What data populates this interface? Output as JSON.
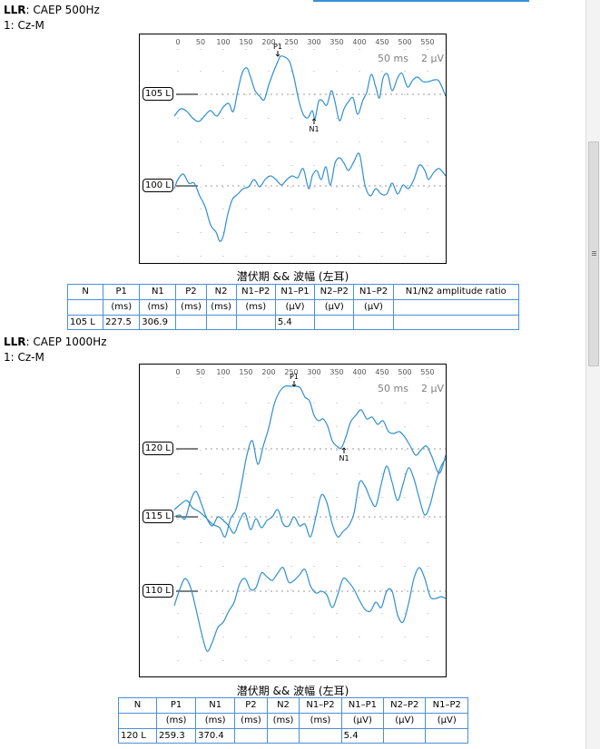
{
  "sections": [
    {
      "title_bold": "LLR",
      "title_rest": ": CAEP 500Hz",
      "channel": "1: Cz-M",
      "scale": {
        "time": "50 ms",
        "amp": "2 µV"
      },
      "axis_ticks": [
        "0",
        "50",
        "100",
        "150",
        "200",
        "250",
        "300",
        "350",
        "400",
        "450",
        "500",
        "550"
      ],
      "traces": [
        {
          "label": "105 L",
          "markers": [
            {
              "name": "P1",
              "ms": 227.5
            },
            {
              "name": "N1",
              "ms": 306.9
            }
          ]
        },
        {
          "label": "100 L",
          "markers": []
        }
      ],
      "table": {
        "title": "潜伏期 && 波幅 (左耳)",
        "headers": [
          [
            "N",
            ""
          ],
          [
            "P1",
            "(ms)"
          ],
          [
            "N1",
            "(ms)"
          ],
          [
            "P2",
            "(ms)"
          ],
          [
            "N2",
            "(ms)"
          ],
          [
            "N1–P2",
            "(ms)"
          ],
          [
            "N1–P1",
            "(µV)"
          ],
          [
            "N2–P2",
            "(µV)"
          ],
          [
            "N1–P2",
            "(µV)"
          ],
          [
            "N1/N2 amplitude ratio",
            ""
          ]
        ],
        "row": [
          "105 L",
          "227.5",
          "306.9",
          "",
          "",
          "",
          "5.4",
          "",
          "",
          ""
        ]
      }
    },
    {
      "title_bold": "LLR",
      "title_rest": ": CAEP 1000Hz",
      "channel": "1: Cz-M",
      "scale": {
        "time": "50 ms",
        "amp": "2 µV"
      },
      "axis_ticks": [
        "0",
        "50",
        "100",
        "150",
        "200",
        "250",
        "300",
        "350",
        "400",
        "450",
        "500",
        "550"
      ],
      "traces": [
        {
          "label": "120 L",
          "markers": [
            {
              "name": "P1",
              "ms": 259.3
            },
            {
              "name": "N1",
              "ms": 370.4
            }
          ]
        },
        {
          "label": "115 L",
          "markers": []
        },
        {
          "label": "110 L",
          "markers": []
        }
      ],
      "table": {
        "title": "潜伏期 && 波幅 (左耳)",
        "headers": [
          [
            "N",
            ""
          ],
          [
            "P1",
            "(ms)"
          ],
          [
            "N1",
            "(ms)"
          ],
          [
            "P2",
            "(ms)"
          ],
          [
            "N2",
            "(ms)"
          ],
          [
            "N1–P2",
            "(ms)"
          ],
          [
            "N1–P1",
            "(µV)"
          ],
          [
            "N2–P2",
            "(µV)"
          ],
          [
            "N1–P2",
            "(µV)"
          ]
        ],
        "row": [
          "120 L",
          "259.3",
          "370.4",
          "",
          "",
          "",
          "5.4",
          "",
          ""
        ]
      }
    }
  ],
  "colors": {
    "trace": "#2f8fcf",
    "grid": "#a9a9a9",
    "table_border": "#4a90d9",
    "scale_text": "#808080"
  }
}
